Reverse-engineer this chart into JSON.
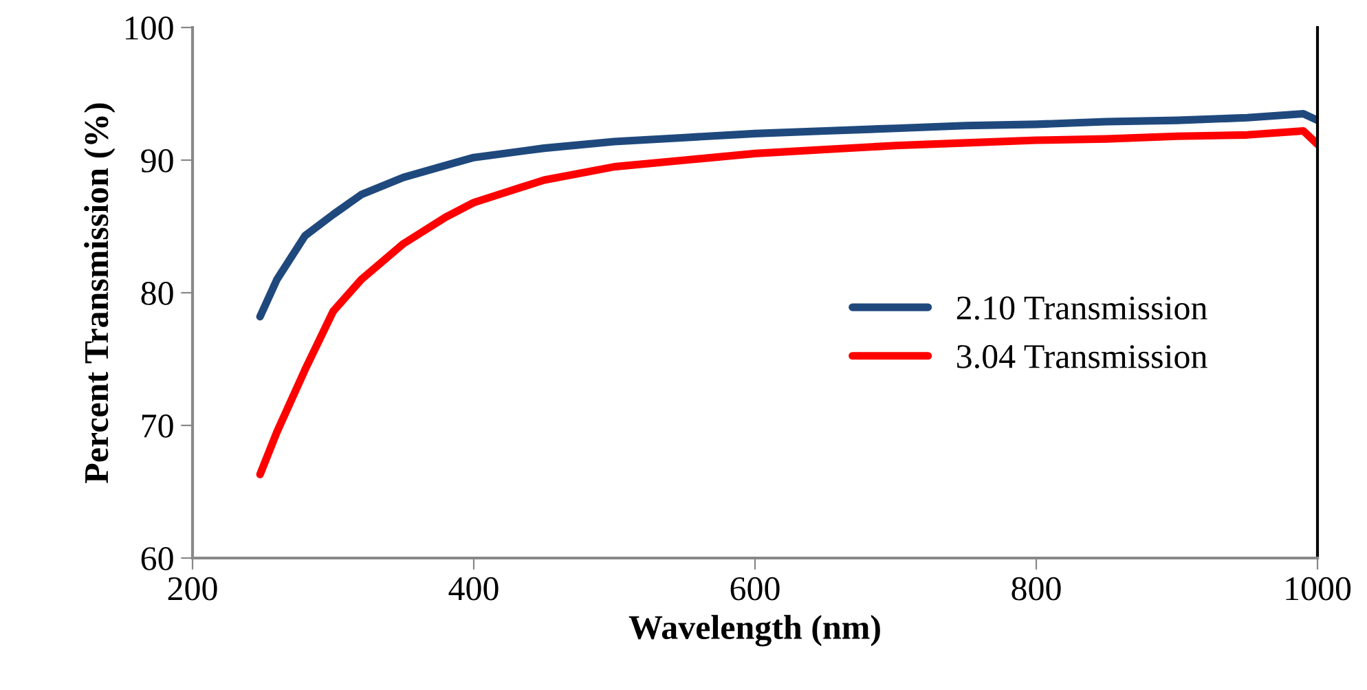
{
  "chart_data": {
    "type": "line",
    "xlabel": "Wavelength (nm)",
    "ylabel": "Percent Transmission (%)",
    "x": [
      248,
      260,
      280,
      300,
      320,
      350,
      380,
      400,
      450,
      500,
      550,
      600,
      650,
      700,
      750,
      800,
      850,
      900,
      950,
      990,
      1000
    ],
    "series": [
      {
        "name": "2.10 Transmission",
        "color": "#1f497d",
        "values": [
          78.2,
          81.0,
          84.3,
          85.9,
          87.4,
          88.7,
          89.6,
          90.2,
          90.9,
          91.4,
          91.7,
          92.0,
          92.2,
          92.4,
          92.6,
          92.7,
          92.9,
          93.0,
          93.2,
          93.5,
          93.0
        ]
      },
      {
        "name": "3.04 Transmission",
        "color": "#ff0000",
        "values": [
          66.3,
          69.5,
          74.2,
          78.6,
          81.0,
          83.7,
          85.7,
          86.8,
          88.5,
          89.5,
          90.0,
          90.5,
          90.8,
          91.1,
          91.3,
          91.5,
          91.6,
          91.8,
          91.9,
          92.2,
          91.2
        ]
      }
    ],
    "xlim": [
      200,
      1000
    ],
    "xticks": [
      200,
      400,
      600,
      800,
      1000
    ],
    "ylim": [
      60,
      100
    ],
    "yticks": [
      60,
      70,
      80,
      90,
      100
    ],
    "grid": false,
    "legend": "right",
    "marker": "none",
    "line_style": "solid"
  }
}
